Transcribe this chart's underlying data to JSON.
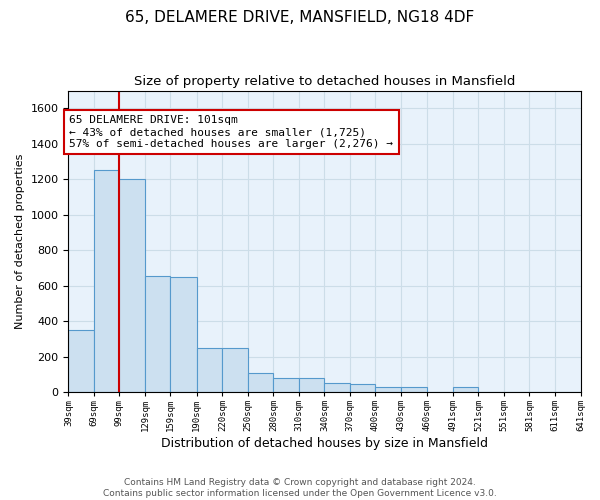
{
  "title1": "65, DELAMERE DRIVE, MANSFIELD, NG18 4DF",
  "title2": "Size of property relative to detached houses in Mansfield",
  "xlabel": "Distribution of detached houses by size in Mansfield",
  "ylabel": "Number of detached properties",
  "bar_color": "#cce0f0",
  "bar_edge_color": "#5599cc",
  "bar_left_edges": [
    39,
    69,
    99,
    129,
    159,
    190,
    220,
    250,
    280,
    310,
    340,
    370,
    400,
    430,
    460,
    491,
    521,
    551,
    581,
    611
  ],
  "bar_widths": [
    30,
    30,
    30,
    30,
    31,
    30,
    30,
    30,
    30,
    30,
    30,
    30,
    30,
    30,
    31,
    30,
    30,
    30,
    30,
    30
  ],
  "bar_heights": [
    350,
    1250,
    1200,
    655,
    650,
    252,
    248,
    110,
    82,
    78,
    52,
    48,
    30,
    28,
    0,
    28,
    0,
    0,
    0,
    0
  ],
  "ylim": [
    0,
    1700
  ],
  "yticks": [
    0,
    200,
    400,
    600,
    800,
    1000,
    1200,
    1400,
    1600
  ],
  "xtick_labels": [
    "39sqm",
    "69sqm",
    "99sqm",
    "129sqm",
    "159sqm",
    "190sqm",
    "220sqm",
    "250sqm",
    "280sqm",
    "310sqm",
    "340sqm",
    "370sqm",
    "400sqm",
    "430sqm",
    "460sqm",
    "491sqm",
    "521sqm",
    "551sqm",
    "581sqm",
    "611sqm",
    "641sqm"
  ],
  "vline_x": 99,
  "vline_color": "#cc0000",
  "annotation_text": "65 DELAMERE DRIVE: 101sqm\n← 43% of detached houses are smaller (1,725)\n57% of semi-detached houses are larger (2,276) →",
  "annotation_box_color": "#cc0000",
  "annotation_text_color": "#000000",
  "footer_text": "Contains HM Land Registry data © Crown copyright and database right 2024.\nContains public sector information licensed under the Open Government Licence v3.0.",
  "grid_color": "#ccdde8",
  "bg_color": "#e8f2fb",
  "title1_fontsize": 11,
  "title2_fontsize": 9.5,
  "xlabel_fontsize": 9,
  "ylabel_fontsize": 8,
  "annotation_fontsize": 8,
  "footer_fontsize": 6.5
}
